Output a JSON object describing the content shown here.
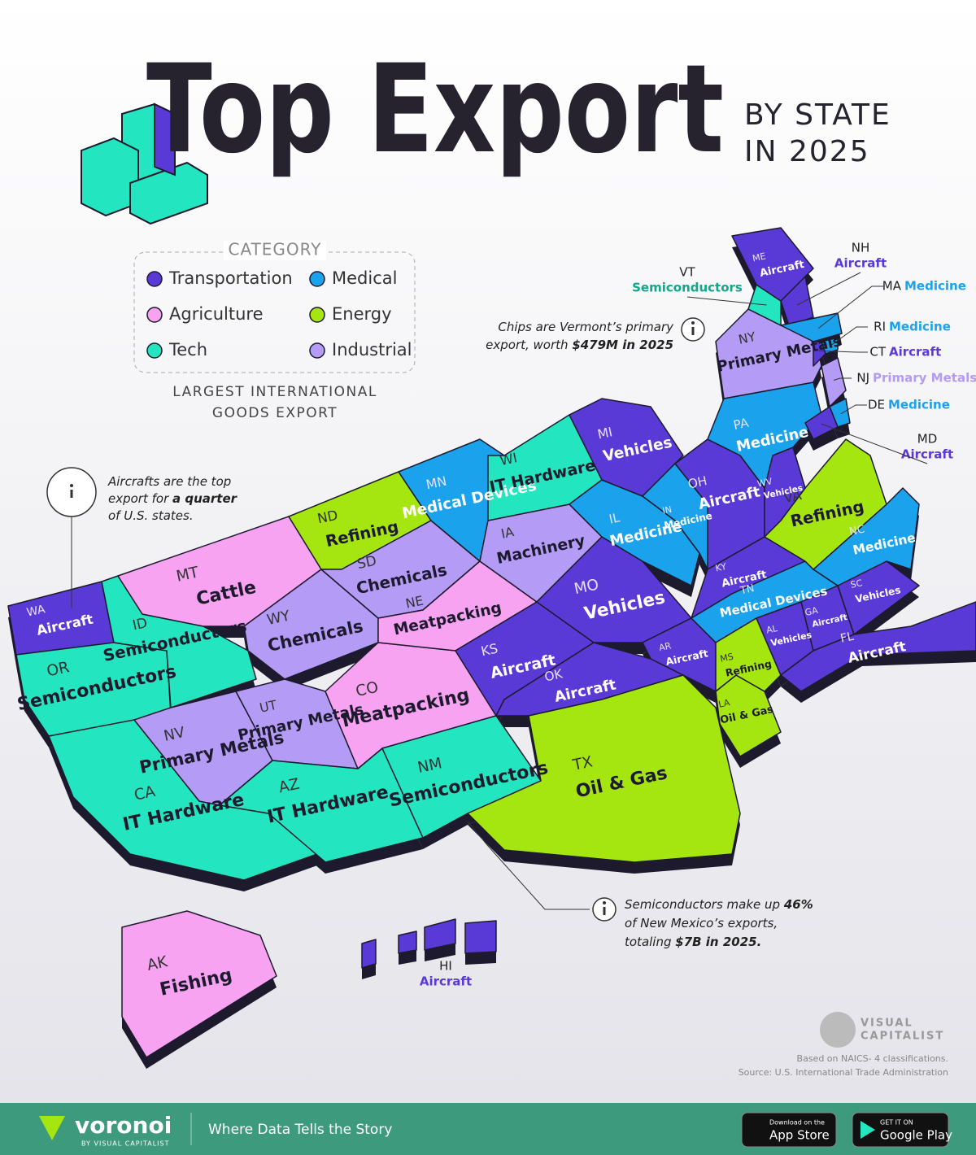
{
  "header": {
    "title": "Top Export",
    "subtitle_lines": [
      "BY STATE",
      "IN 2025"
    ]
  },
  "legend": {
    "title": "CATEGORY",
    "items": [
      {
        "label": "Transportation",
        "color": "#5a3ad6"
      },
      {
        "label": "Medical",
        "color": "#1aa3ec"
      },
      {
        "label": "Agriculture",
        "color": "#f7a3f2"
      },
      {
        "label": "Energy",
        "color": "#a6e610"
      },
      {
        "label": "Tech",
        "color": "#23e6c0"
      },
      {
        "label": "Industrial",
        "color": "#b49cf6"
      }
    ],
    "caption_lines": [
      "LARGEST INTERNATIONAL",
      "GOODS EXPORT"
    ]
  },
  "states": [
    {
      "code": "WA",
      "export": "Aircraft",
      "color": "#5a3ad6"
    },
    {
      "code": "OR",
      "export": "Semiconductors",
      "color": "#23e6c0"
    },
    {
      "code": "CA",
      "export": "IT Hardware",
      "color": "#23e6c0"
    },
    {
      "code": "ID",
      "export": "Semiconductors",
      "color": "#23e6c0"
    },
    {
      "code": "NV",
      "export": "Primary Metals",
      "color": "#b49cf6"
    },
    {
      "code": "MT",
      "export": "Cattle",
      "color": "#f7a3f2"
    },
    {
      "code": "WY",
      "export": "Chemicals",
      "color": "#b49cf6"
    },
    {
      "code": "UT",
      "export": "Primary Metals",
      "color": "#b49cf6"
    },
    {
      "code": "AZ",
      "export": "IT Hardware",
      "color": "#23e6c0"
    },
    {
      "code": "CO",
      "export": "Meatpacking",
      "color": "#f7a3f2"
    },
    {
      "code": "NM",
      "export": "Semiconductors",
      "color": "#23e6c0"
    },
    {
      "code": "ND",
      "export": "Refining",
      "color": "#a6e610"
    },
    {
      "code": "SD",
      "export": "Chemicals",
      "color": "#b49cf6"
    },
    {
      "code": "NE",
      "export": "Meatpacking",
      "color": "#f7a3f2"
    },
    {
      "code": "KS",
      "export": "Aircraft",
      "color": "#5a3ad6"
    },
    {
      "code": "OK",
      "export": "Aircraft",
      "color": "#5a3ad6"
    },
    {
      "code": "TX",
      "export": "Oil & Gas",
      "color": "#a6e610"
    },
    {
      "code": "MN",
      "export": "Medical Devices",
      "color": "#1aa3ec"
    },
    {
      "code": "IA",
      "export": "Machinery",
      "color": "#b49cf6"
    },
    {
      "code": "MO",
      "export": "Vehicles",
      "color": "#5a3ad6"
    },
    {
      "code": "AR",
      "export": "Aircraft",
      "color": "#5a3ad6"
    },
    {
      "code": "LA",
      "export": "Oil & Gas",
      "color": "#a6e610"
    },
    {
      "code": "WI",
      "export": "IT Hardware",
      "color": "#23e6c0"
    },
    {
      "code": "IL",
      "export": "Medicine",
      "color": "#1aa3ec"
    },
    {
      "code": "MI",
      "export": "Vehicles",
      "color": "#5a3ad6"
    },
    {
      "code": "IN",
      "export": "Medicine",
      "color": "#1aa3ec"
    },
    {
      "code": "OH",
      "export": "Aircraft",
      "color": "#5a3ad6"
    },
    {
      "code": "KY",
      "export": "Aircraft",
      "color": "#5a3ad6"
    },
    {
      "code": "TN",
      "export": "Medical Devices",
      "color": "#1aa3ec"
    },
    {
      "code": "MS",
      "export": "Refining",
      "color": "#a6e610"
    },
    {
      "code": "AL",
      "export": "Vehicles",
      "color": "#5a3ad6"
    },
    {
      "code": "GA",
      "export": "Aircraft",
      "color": "#5a3ad6"
    },
    {
      "code": "FL",
      "export": "Aircraft",
      "color": "#5a3ad6"
    },
    {
      "code": "SC",
      "export": "Vehicles",
      "color": "#5a3ad6"
    },
    {
      "code": "NC",
      "export": "Medicine",
      "color": "#1aa3ec"
    },
    {
      "code": "VA",
      "export": "Refining",
      "color": "#a6e610"
    },
    {
      "code": "WV",
      "export": "Vehicles",
      "color": "#5a3ad6"
    },
    {
      "code": "PA",
      "export": "Medicine",
      "color": "#1aa3ec"
    },
    {
      "code": "NY",
      "export": "Primary Metals",
      "color": "#b49cf6"
    },
    {
      "code": "VT",
      "export": "Semiconductors",
      "color": "#23e6c0"
    },
    {
      "code": "NH",
      "export": "Aircraft",
      "color": "#5a3ad6"
    },
    {
      "code": "ME",
      "export": "Aircraft",
      "color": "#5a3ad6"
    },
    {
      "code": "MA",
      "export": "Medicine",
      "color": "#1aa3ec"
    },
    {
      "code": "RI",
      "export": "Medicine",
      "color": "#1aa3ec"
    },
    {
      "code": "CT",
      "export": "Aircraft",
      "color": "#5a3ad6"
    },
    {
      "code": "NJ",
      "export": "Primary Metals",
      "color": "#b49cf6"
    },
    {
      "code": "DE",
      "export": "Medicine",
      "color": "#1aa3ec"
    },
    {
      "code": "MD",
      "export": "Aircraft",
      "color": "#5a3ad6"
    },
    {
      "code": "AK",
      "export": "Fishing",
      "color": "#f7a3f2"
    },
    {
      "code": "HI",
      "export": "Aircraft",
      "color": "#5a3ad6"
    }
  ],
  "annotations": [
    {
      "lines": [
        [
          {
            "text": "Aircrafts are the top"
          }
        ],
        [
          {
            "text": "export for "
          },
          {
            "text": "a quarter",
            "bold": true
          }
        ],
        [
          {
            "text": "of U.S. states."
          }
        ]
      ]
    },
    {
      "lines": [
        [
          {
            "text": "Chips are Vermont’s primary"
          }
        ],
        [
          {
            "text": "export, worth "
          },
          {
            "text": "$479M in 2025",
            "bold": true
          }
        ]
      ]
    },
    {
      "lines": [
        [
          {
            "text": "Semiconductors make up "
          },
          {
            "text": "46%",
            "bold": true
          }
        ],
        [
          {
            "text": "of New Mexico’s exports,"
          }
        ],
        [
          {
            "text": "totaling "
          },
          {
            "text": "$7B in 2025.",
            "bold": true
          }
        ]
      ]
    }
  ],
  "source": {
    "lines": [
      "Based on NAICS- 4 classifications.",
      "Source: U.S. International Trade Administration"
    ]
  },
  "brand": {
    "logo_lines": [
      "VISUAL",
      "CAPITALIST"
    ]
  },
  "footer": {
    "name": "voronoi",
    "byline": "BY VISUAL CAPITALIST",
    "slogan": "Where Data Tells the Story",
    "app_store": {
      "small": "Download on the",
      "large": "App Store"
    },
    "google_play": {
      "small": "GET IT ON",
      "large": "Google Play"
    }
  }
}
